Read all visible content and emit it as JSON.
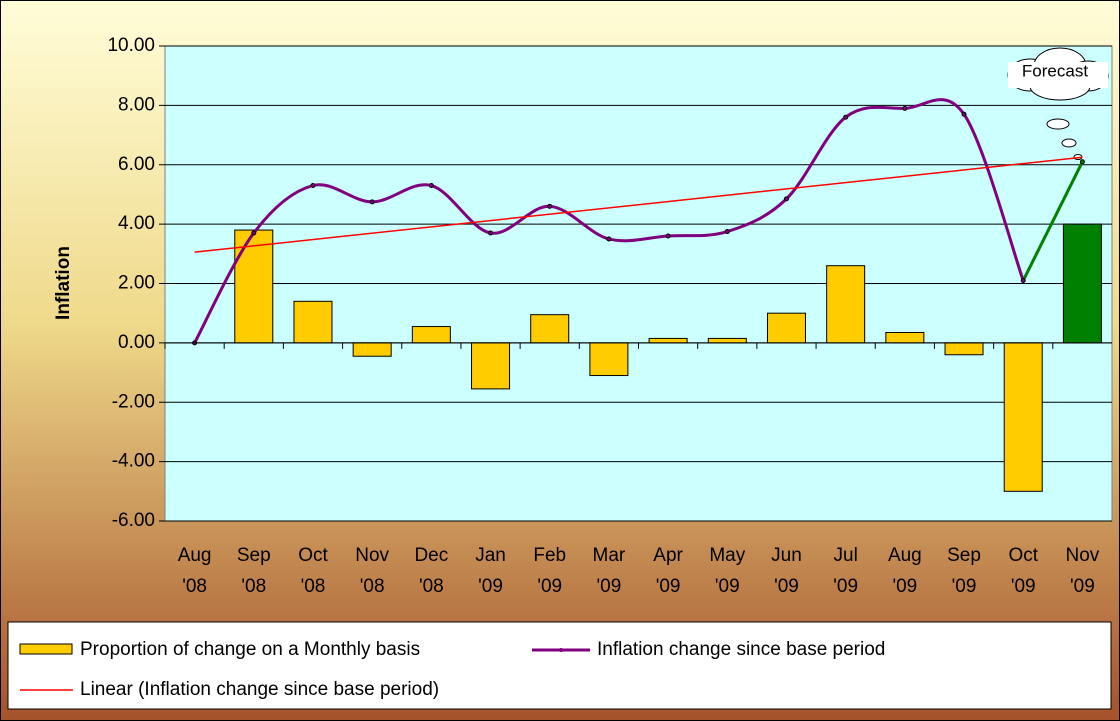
{
  "chart_data": {
    "type": "bar_line",
    "y_axis_label": "Inflation",
    "categories": [
      "Aug '08",
      "Sep '08",
      "Oct '08",
      "Nov '08",
      "Dec '08",
      "Jan '09",
      "Feb '09",
      "Mar '09",
      "Apr '09",
      "May '09",
      "Jun '09",
      "Jul '09",
      "Aug '09",
      "Sep '09",
      "Oct '09",
      "Nov '09"
    ],
    "series": [
      {
        "name": "Proportion of change on a Monthly basis",
        "type": "bar",
        "colors": [
          "#ffcc00",
          "#ffcc00",
          "#ffcc00",
          "#ffcc00",
          "#ffcc00",
          "#ffcc00",
          "#ffcc00",
          "#ffcc00",
          "#ffcc00",
          "#ffcc00",
          "#ffcc00",
          "#ffcc00",
          "#ffcc00",
          "#ffcc00",
          "#ffcc00",
          "#008000"
        ],
        "color": "#ffcc00",
        "values": [
          0,
          3.8,
          1.4,
          -0.45,
          0.55,
          -1.55,
          0.95,
          -1.1,
          0.15,
          0.15,
          1.0,
          2.6,
          0.35,
          -0.4,
          -5.0,
          4.0
        ]
      },
      {
        "name": "Inflation change since base period",
        "type": "line",
        "color": "#800080",
        "values": [
          0,
          3.7,
          5.3,
          4.75,
          5.3,
          3.7,
          4.6,
          3.5,
          3.6,
          3.75,
          4.85,
          7.6,
          7.9,
          7.7,
          2.1,
          6.1
        ]
      }
    ],
    "trendline": {
      "name": "Linear (Inflation change since base period)",
      "color": "#ff0000"
    },
    "forecast": {
      "label": "Forecast",
      "color": "#008000"
    },
    "ylim": [
      -6,
      10
    ],
    "yticks": [
      {
        "value": -6,
        "label": "-6.00"
      },
      {
        "value": -4,
        "label": "-4.00"
      },
      {
        "value": -2,
        "label": "-2.00"
      },
      {
        "value": 0,
        "label": "0.00"
      },
      {
        "value": 2,
        "label": "2.00"
      },
      {
        "value": 4,
        "label": "4.00"
      },
      {
        "value": 6,
        "label": "6.00"
      },
      {
        "value": 8,
        "label": "8.00"
      },
      {
        "value": 10,
        "label": "10.00"
      }
    ],
    "grid": true
  }
}
